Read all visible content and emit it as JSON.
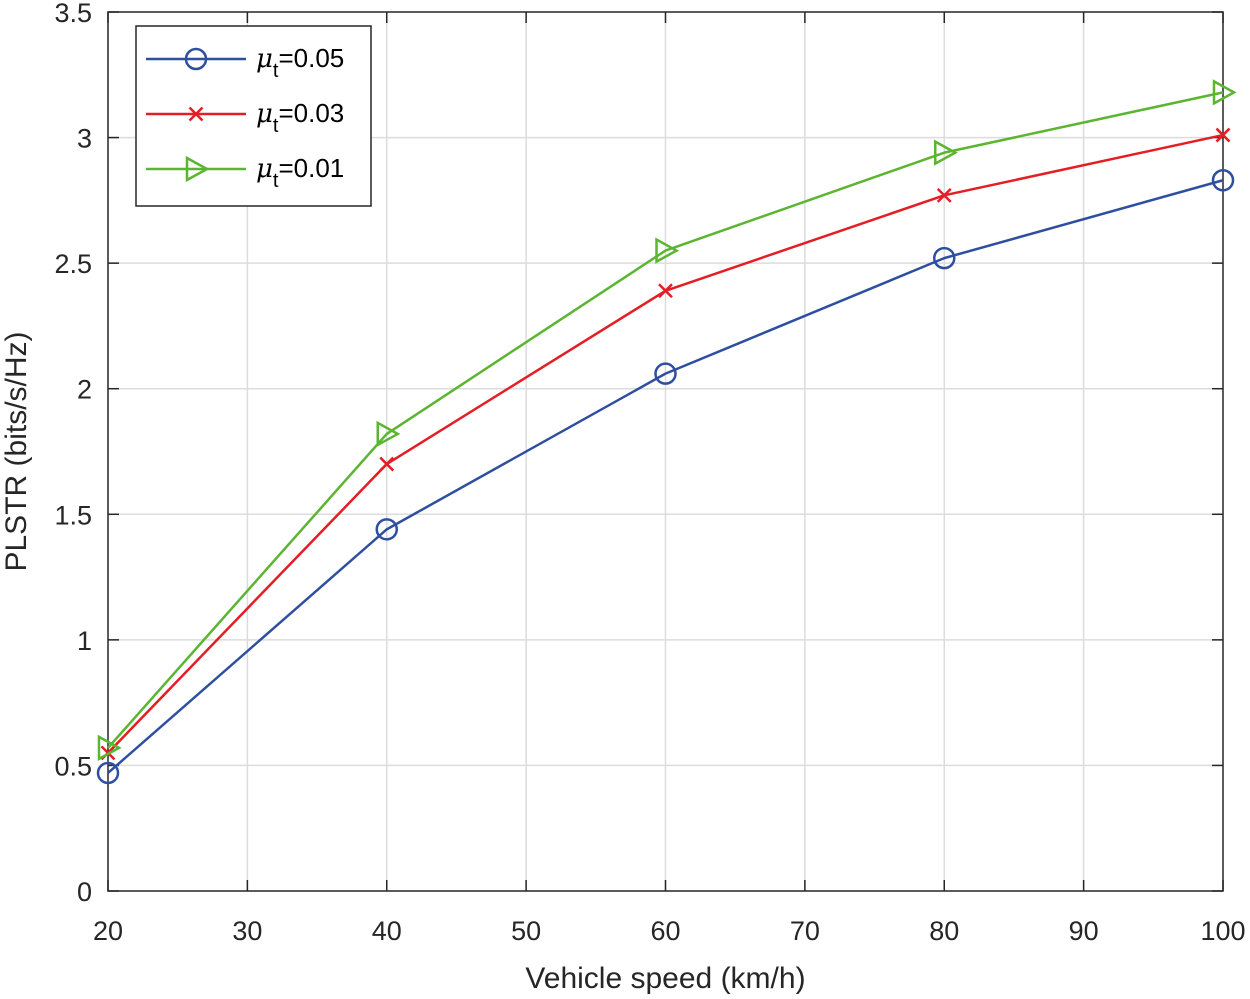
{
  "chart_data": {
    "type": "line",
    "xlabel": "Vehicle speed (km/h)",
    "ylabel": "PLSTR (bits/s/Hz)",
    "xlim": [
      20,
      100
    ],
    "ylim": [
      0,
      3.5
    ],
    "xticks": [
      20,
      30,
      40,
      50,
      60,
      70,
      80,
      90,
      100
    ],
    "yticks": [
      0,
      0.5,
      1,
      1.5,
      2,
      2.5,
      3,
      3.5
    ],
    "xtick_labels": [
      "20",
      "30",
      "40",
      "50",
      "60",
      "70",
      "80",
      "90",
      "100"
    ],
    "ytick_labels": [
      "0",
      "0.5",
      "1",
      "1.5",
      "2",
      "2.5",
      "3",
      "3.5"
    ],
    "grid": true,
    "legend_position": "top-left",
    "x": [
      20,
      40,
      60,
      80,
      100
    ],
    "series": [
      {
        "name": "μt=0.05",
        "name_symbol": "μ",
        "name_subscript": "t",
        "name_value": "=0.05",
        "color": "#2e4fa0",
        "marker": "circle",
        "values": [
          0.47,
          1.44,
          2.06,
          2.52,
          2.83
        ]
      },
      {
        "name": "μt=0.03",
        "name_symbol": "μ",
        "name_subscript": "t",
        "name_value": "=0.03",
        "color": "#e31e24",
        "marker": "x",
        "values": [
          0.55,
          1.7,
          2.39,
          2.77,
          3.01
        ]
      },
      {
        "name": "μt=0.01",
        "name_symbol": "μ",
        "name_subscript": "t",
        "name_value": "=0.01",
        "color": "#5cb531",
        "marker": "triangle-right",
        "values": [
          0.57,
          1.82,
          2.55,
          2.94,
          3.18
        ]
      }
    ]
  }
}
